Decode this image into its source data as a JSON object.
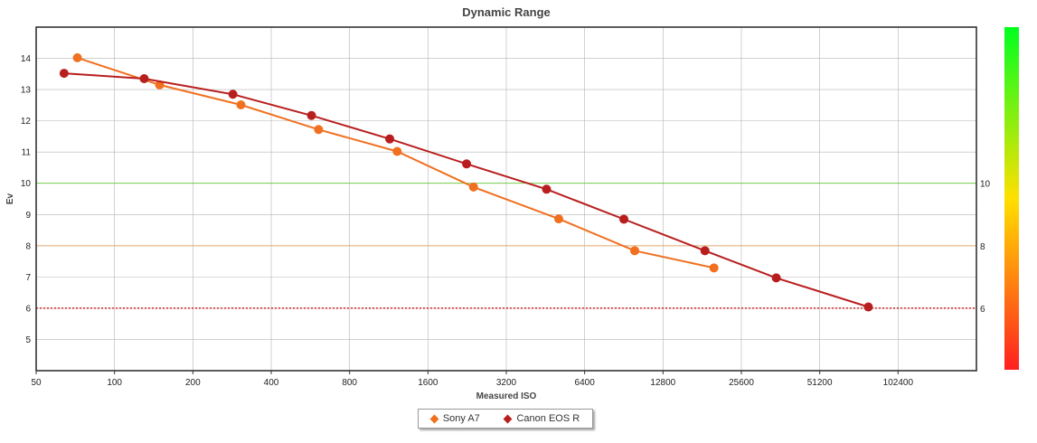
{
  "chart_data": {
    "type": "line",
    "title": "Dynamic Range",
    "xlabel": "Measured ISO",
    "ylabel": "Ev",
    "x_scale": "log2",
    "x_ticks": [
      50,
      100,
      200,
      400,
      800,
      1600,
      3200,
      6400,
      12800,
      25600,
      51200,
      102400
    ],
    "y_ticks": [
      5,
      6,
      7,
      8,
      9,
      10,
      11,
      12,
      13,
      14
    ],
    "xlim": [
      50,
      204800
    ],
    "ylim": [
      4,
      15
    ],
    "grid": true,
    "legend_position": "bottom-center",
    "series": [
      {
        "name": "Sony A7",
        "color": "#f07020",
        "points": [
          {
            "x": 72,
            "y": 14.02
          },
          {
            "x": 149,
            "y": 13.15
          },
          {
            "x": 306,
            "y": 12.51
          },
          {
            "x": 608,
            "y": 11.72
          },
          {
            "x": 1219,
            "y": 11.02
          },
          {
            "x": 2395,
            "y": 9.88
          },
          {
            "x": 5089,
            "y": 8.86
          },
          {
            "x": 9964,
            "y": 7.84
          },
          {
            "x": 20085,
            "y": 7.29
          }
        ]
      },
      {
        "name": "Canon EOS R",
        "color": "#b81e1e",
        "points": [
          {
            "x": 64,
            "y": 13.52
          },
          {
            "x": 130,
            "y": 13.35
          },
          {
            "x": 285,
            "y": 12.85
          },
          {
            "x": 571,
            "y": 12.17
          },
          {
            "x": 1141,
            "y": 11.42
          },
          {
            "x": 2252,
            "y": 10.62
          },
          {
            "x": 4567,
            "y": 9.81
          },
          {
            "x": 9055,
            "y": 8.85
          },
          {
            "x": 18552,
            "y": 7.84
          },
          {
            "x": 34862,
            "y": 6.97
          },
          {
            "x": 78720,
            "y": 6.04
          }
        ]
      }
    ],
    "reference_lines": [
      {
        "value": 10,
        "label": "10",
        "color": "#66cc33",
        "style": "solid"
      },
      {
        "value": 8,
        "label": "8",
        "color": "#e0a060",
        "style": "solid"
      },
      {
        "value": 6,
        "label": "6",
        "color": "#cc0000",
        "style": "dotted"
      }
    ],
    "color_scale": {
      "stops": [
        "#ff2020",
        "#ffe000",
        "#00ff20"
      ]
    }
  },
  "ref_label_colors": {
    "10": "#66cc33",
    "8": "#f0a020",
    "6": "#cc0000"
  }
}
